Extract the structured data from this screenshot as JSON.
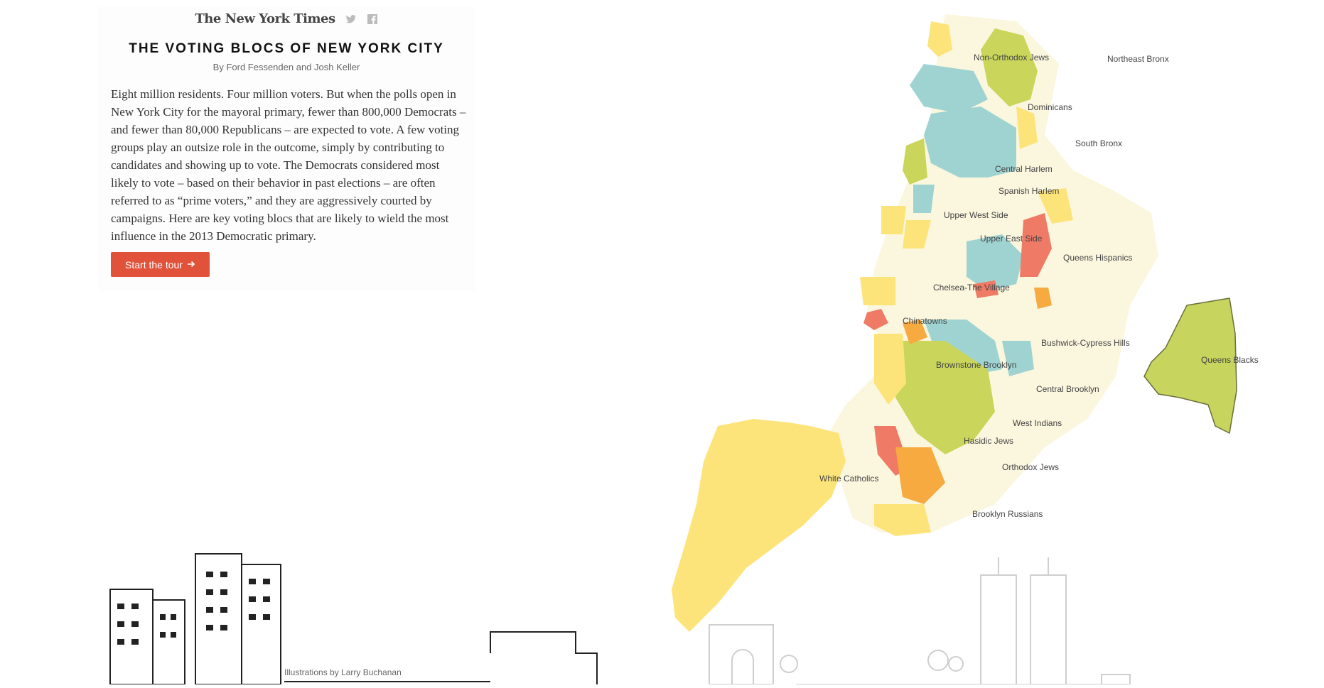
{
  "masthead": {
    "logo_text": "The New York Times",
    "twitter_icon": "twitter-icon",
    "facebook_icon": "facebook-icon"
  },
  "header": {
    "title": "THE VOTING BLOCS OF NEW YORK CITY",
    "byline": "By Ford Fessenden and Josh Keller"
  },
  "intro": {
    "text": "Eight million residents. Four million voters. But when the polls open in New York City for the mayoral primary, fewer than 800,000 Democrats – and fewer than 80,000 Republicans – are expected to vote. A few voting groups play an outsize role in the outcome, simply by contributing to candidates and showing up to vote. The Democrats considered most likely to vote – based on their behavior in past elections – are often referred to as “prime voters,” and they are aggressively courted by campaigns. Here are key voting blocs that are likely to wield the most influence in the 2013 Democratic primary."
  },
  "tour": {
    "button_label": "Start the tour",
    "arrow_icon": "arrow-right-icon"
  },
  "map": {
    "colors": {
      "yellow": "#fde47a",
      "green": "#c9d65b",
      "blue": "#9fd3d1",
      "orange": "#f7aa3f",
      "red": "#ef7a66",
      "beige": "#fbf6de",
      "gray": "#e6e4d6",
      "queens_blacks": "#c7d45e"
    },
    "labels": [
      {
        "id": "non-orthodox-jews",
        "text": "Non-Orthodox Jews"
      },
      {
        "id": "northeast-bronx",
        "text": "Northeast Bronx"
      },
      {
        "id": "dominicans",
        "text": "Dominicans"
      },
      {
        "id": "south-bronx",
        "text": "South Bronx"
      },
      {
        "id": "central-harlem",
        "text": "Central Harlem"
      },
      {
        "id": "spanish-harlem",
        "text": "Spanish Harlem"
      },
      {
        "id": "upper-west-side",
        "text": "Upper West Side"
      },
      {
        "id": "upper-east-side",
        "text": "Upper East Side"
      },
      {
        "id": "queens-hispanics",
        "text": "Queens Hispanics"
      },
      {
        "id": "chelsea-village",
        "text": "Chelsea-The Village"
      },
      {
        "id": "chinatowns",
        "text": "Chinatowns"
      },
      {
        "id": "bushwick",
        "text": "Bushwick-Cypress Hills"
      },
      {
        "id": "queens-blacks",
        "text": "Queens Blacks"
      },
      {
        "id": "brownstone-brooklyn",
        "text": "Brownstone Brooklyn"
      },
      {
        "id": "central-brooklyn",
        "text": "Central Brooklyn"
      },
      {
        "id": "west-indians",
        "text": "West Indians"
      },
      {
        "id": "hasidic-jews",
        "text": "Hasidic Jews"
      },
      {
        "id": "white-catholics",
        "text": "White Catholics"
      },
      {
        "id": "orthodox-jews",
        "text": "Orthodox Jews"
      },
      {
        "id": "brooklyn-russians",
        "text": "Brooklyn Russians"
      }
    ]
  },
  "footer": {
    "illustration_credit": "Illustrations by Larry Buchanan"
  }
}
